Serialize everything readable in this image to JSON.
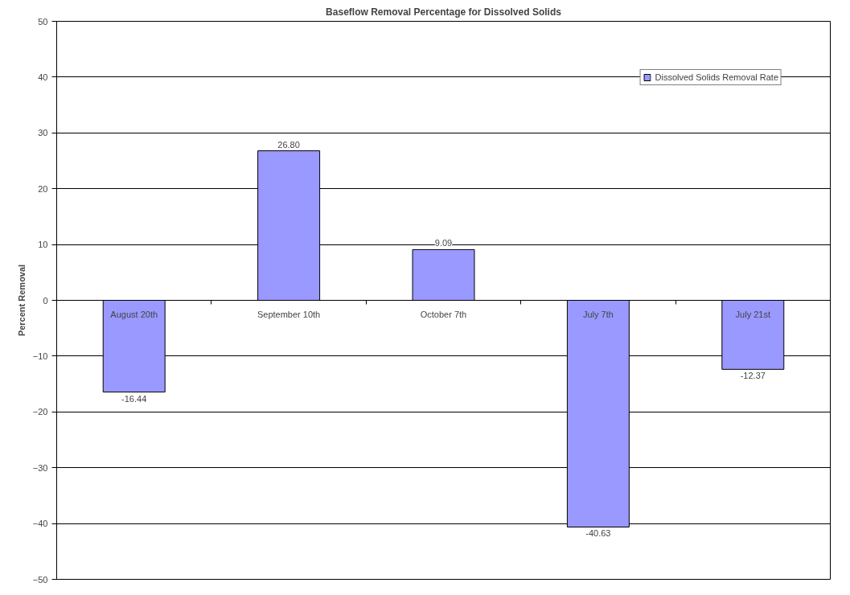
{
  "chart_data": {
    "type": "bar",
    "title": "Baseflow Removal Percentage for Dissolved Solids",
    "ylabel": "Percent Removal",
    "categories": [
      "August 20th",
      "September 10th",
      "October 7th",
      "July 7th",
      "July 21st"
    ],
    "series": [
      {
        "name": "Dissolved Solids Removal Rate",
        "color": "#9999ff",
        "values": [
          -16.44,
          26.8,
          9.09,
          -40.63,
          -12.37
        ],
        "value_labels": [
          "-16.44",
          "26.80",
          "9.09",
          "-40.63",
          "-12.37"
        ]
      }
    ],
    "ylim": [
      -50,
      50
    ],
    "yticks": [
      -50,
      -40,
      -30,
      -20,
      -10,
      0,
      10,
      20,
      30,
      40,
      50
    ],
    "grid": "y",
    "legend": "top right"
  }
}
